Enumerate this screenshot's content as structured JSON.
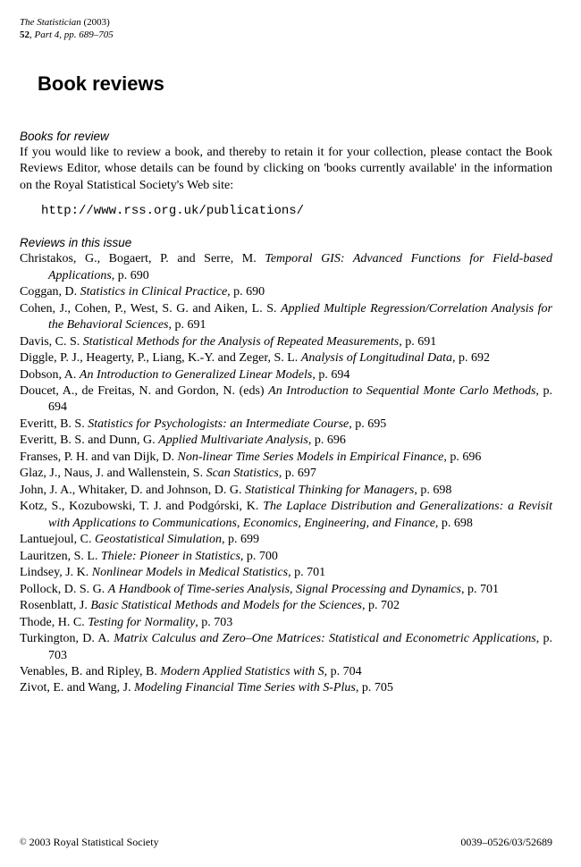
{
  "journal": {
    "name": "The Statistician",
    "year": "(2003)",
    "volume": "52",
    "issue_info": ", Part 4, pp. 689–705"
  },
  "page_title": "Book reviews",
  "books_for_review": {
    "heading": "Books for review",
    "paragraph": "If you would like to review a book, and thereby to retain it for your collection, please contact the Book Reviews Editor, whose details can be found by clicking on 'books currently available' in the information on the Royal Statistical Society's Web site:",
    "url": "http://www.rss.org.uk/publications/"
  },
  "reviews_heading": "Reviews in this issue",
  "reviews": [
    {
      "authors": "Christakos, G., Bogaert, P. and Serre, M.",
      "title": "Temporal GIS: Advanced Functions for Field-based Applications",
      "page": ", p. 690"
    },
    {
      "authors": "Coggan, D.",
      "title": "Statistics in Clinical Practice",
      "page": ", p. 690"
    },
    {
      "authors": "Cohen, J., Cohen, P., West, S. G. and Aiken, L. S.",
      "title": "Applied Multiple Regression/Correlation Analysis for the Behavioral Sciences",
      "page": ", p. 691"
    },
    {
      "authors": "Davis, C. S.",
      "title": "Statistical Methods for the Analysis of Repeated Measurements",
      "page": ", p. 691"
    },
    {
      "authors": "Diggle, P. J., Heagerty, P., Liang, K.-Y. and Zeger, S. L.",
      "title": "Analysis of Longitudinal Data",
      "page": ", p. 692"
    },
    {
      "authors": "Dobson, A.",
      "title": "An Introduction to Generalized Linear Models",
      "page": ", p. 694"
    },
    {
      "authors": "Doucet, A., de Freitas, N. and Gordon, N. (eds)",
      "title": "An Introduction to Sequential Monte Carlo Methods",
      "page": ", p. 694"
    },
    {
      "authors": "Everitt, B. S.",
      "title": "Statistics for Psychologists: an Intermediate Course",
      "page": ", p. 695"
    },
    {
      "authors": "Everitt, B. S. and Dunn, G.",
      "title": "Applied Multivariate Analysis",
      "page": ", p. 696"
    },
    {
      "authors": "Franses, P. H. and van Dijk, D.",
      "title": "Non-linear Time Series Models in Empirical Finance",
      "page": ", p. 696"
    },
    {
      "authors": "Glaz, J., Naus, J. and Wallenstein, S.",
      "title": "Scan Statistics",
      "page": ", p. 697"
    },
    {
      "authors": "John, J. A., Whitaker, D. and Johnson, D. G.",
      "title": "Statistical Thinking for Managers",
      "page": ", p. 698"
    },
    {
      "authors": "Kotz, S., Kozubowski, T. J. and Podgórski, K.",
      "title": "The Laplace Distribution and Generalizations: a Revisit with Applications to Communications, Economics, Engineering, and Finance",
      "page": ", p. 698"
    },
    {
      "authors": "Lantuejoul, C.",
      "title": "Geostatistical Simulation",
      "page": ", p. 699"
    },
    {
      "authors": "Lauritzen, S. L.",
      "title": "Thiele: Pioneer in Statistics",
      "page": ", p. 700"
    },
    {
      "authors": "Lindsey, J. K.",
      "title": "Nonlinear Models in Medical Statistics",
      "page": ", p. 701"
    },
    {
      "authors": "Pollock, D. S. G.",
      "title": "A Handbook of Time-series Analysis, Signal Processing and Dynamics",
      "page": ", p. 701"
    },
    {
      "authors": "Rosenblatt, J.",
      "title": "Basic Statistical Methods and Models for the Sciences",
      "page": ", p. 702"
    },
    {
      "authors": "Thode, H. C.",
      "title": "Testing for Normality",
      "page": ", p. 703"
    },
    {
      "authors": "Turkington, D. A.",
      "title": "Matrix Calculus and Zero–One Matrices: Statistical and Econometric Applications",
      "page": ", p. 703"
    },
    {
      "authors": "Venables, B. and Ripley, B.",
      "title": "Modern Applied Statistics with S",
      "page": ", p. 704"
    },
    {
      "authors": "Zivot, E. and Wang, J.",
      "title": "Modeling Financial Time Series with S-Plus",
      "page": ", p. 705"
    }
  ],
  "footer": {
    "copyright": " 2003 Royal Statistical Society",
    "issn": "0039–0526/03/52689"
  }
}
